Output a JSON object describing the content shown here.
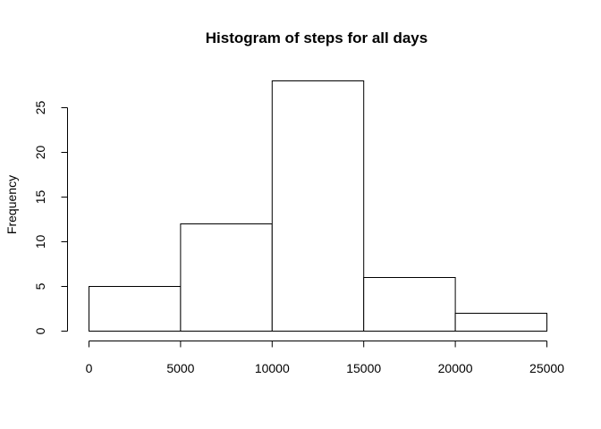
{
  "chart_data": {
    "type": "bar",
    "title": "Histogram of steps for all days",
    "xlabel": "",
    "ylabel": "Frequency",
    "bins": [
      {
        "from": 0,
        "to": 5000,
        "count": 5
      },
      {
        "from": 5000,
        "to": 10000,
        "count": 12
      },
      {
        "from": 10000,
        "to": 15000,
        "count": 28
      },
      {
        "from": 15000,
        "to": 20000,
        "count": 6
      },
      {
        "from": 20000,
        "to": 25000,
        "count": 2
      }
    ],
    "xlim": [
      0,
      25000
    ],
    "ylim": [
      0,
      28
    ],
    "x_ticks": [
      "0",
      "5000",
      "10000",
      "15000",
      "20000",
      "25000"
    ],
    "x_tick_values": [
      0,
      5000,
      10000,
      15000,
      20000,
      25000
    ],
    "y_ticks": [
      "0",
      "5",
      "10",
      "15",
      "20",
      "25"
    ],
    "y_tick_values": [
      0,
      5,
      10,
      15,
      20,
      25
    ],
    "grid": false,
    "bar_fill": "#ffffff",
    "bar_stroke": "#000000"
  }
}
